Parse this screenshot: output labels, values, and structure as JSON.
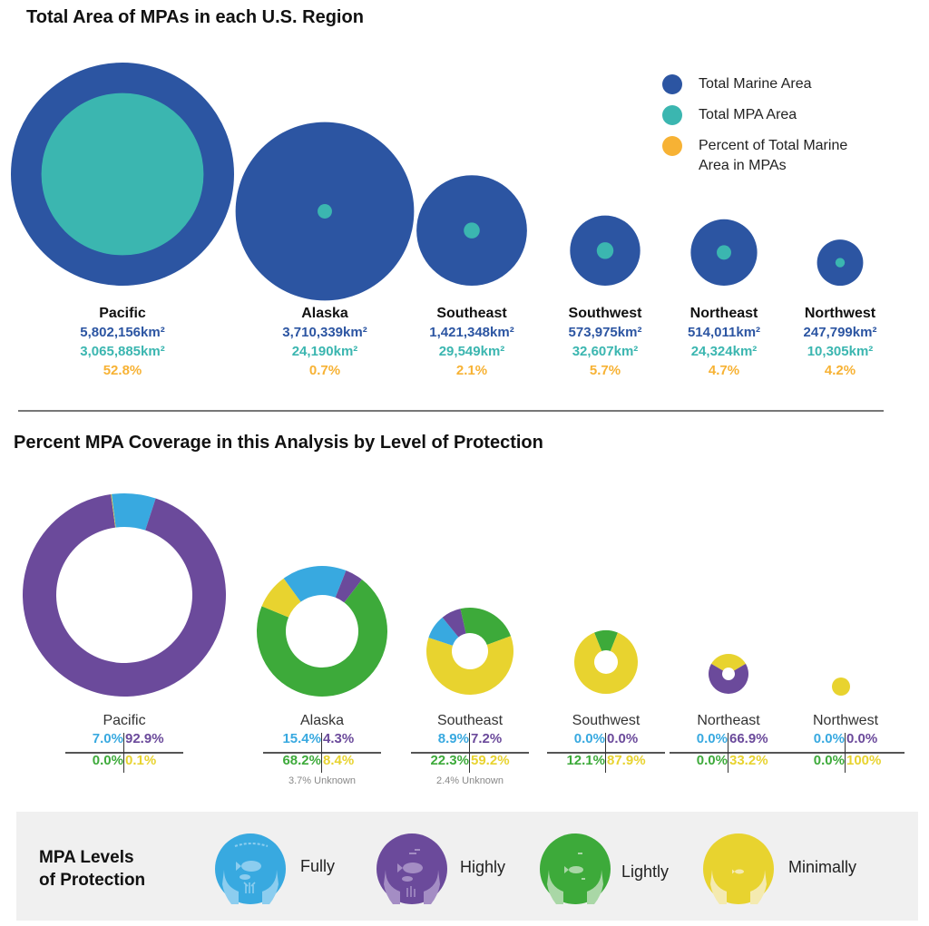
{
  "section1": {
    "title": "Total Area of MPAs in each U.S. Region",
    "legend": [
      {
        "label": "Total Marine Area",
        "color": "#2c55a2"
      },
      {
        "label": "Total MPA Area",
        "color": "#3bb6b0"
      },
      {
        "label": "Percent of Total Marine Area in MPAs",
        "line1": "Percent of Total Marine",
        "line2": "Area in MPAs",
        "color": "#f7b234"
      }
    ]
  },
  "section2": {
    "title": "Percent MPA Coverage in this Analysis by Level of Protection"
  },
  "colors": {
    "marine": "#2c55a2",
    "mpa": "#3bb6b0",
    "percent": "#f7b234",
    "fully": "#38a9e0",
    "highly": "#6b4a9b",
    "lightly": "#3daa3a",
    "minimally": "#e8d32f"
  },
  "chart_data": [
    {
      "type": "bubble",
      "title": "Total Area of MPAs in each U.S. Region",
      "unit": "km²",
      "categories": [
        "Pacific",
        "Alaska",
        "Southeast",
        "Southwest",
        "Northeast",
        "Northwest"
      ],
      "series": [
        {
          "name": "Total Marine Area",
          "values": [
            5802156,
            3710339,
            1421348,
            573975,
            514011,
            247799
          ],
          "labels": [
            "5,802,156km²",
            "3,710,339km²",
            "1,421,348km²",
            "573,975km²",
            "514,011km²",
            "247,799km²"
          ]
        },
        {
          "name": "Total MPA Area",
          "values": [
            3065885,
            24190,
            29549,
            32607,
            24324,
            10305
          ],
          "labels": [
            "3,065,885km²",
            "24,190km²",
            "29,549km²",
            "32,607km²",
            "24,324km²",
            "10,305km²"
          ]
        },
        {
          "name": "Percent of Total Marine Area in MPAs",
          "values": [
            52.8,
            0.7,
            2.1,
            5.7,
            4.7,
            4.2
          ],
          "labels": [
            "52.8%",
            "0.7%",
            "2.1%",
            "5.7%",
            "4.7%",
            "4.2%"
          ]
        }
      ],
      "legend_position": "top-right"
    },
    {
      "type": "pie",
      "subtype": "donut",
      "title": "Percent MPA Coverage in this Analysis by Level of Protection",
      "categories": [
        "Pacific",
        "Alaska",
        "Southeast",
        "Southwest",
        "Northeast",
        "Northwest"
      ],
      "levels": [
        "Fully",
        "Highly",
        "Lightly",
        "Minimally"
      ],
      "series": [
        {
          "name": "Fully",
          "values": [
            7.0,
            15.4,
            8.9,
            0.0,
            0.0,
            0.0
          ],
          "labels": [
            "7.0%",
            "15.4%",
            "8.9%",
            "0.0%",
            "0.0%",
            "0.0%"
          ]
        },
        {
          "name": "Highly",
          "values": [
            92.9,
            4.3,
            7.2,
            0.0,
            66.9,
            0.0
          ],
          "labels": [
            "92.9%",
            "4.3%",
            "7.2%",
            "0.0%",
            "66.9%",
            "0.0%"
          ]
        },
        {
          "name": "Lightly",
          "values": [
            0.0,
            68.2,
            22.3,
            12.1,
            0.0,
            0.0
          ],
          "labels": [
            "0.0%",
            "68.2%",
            "22.3%",
            "12.1%",
            "0.0%",
            "0.0%"
          ]
        },
        {
          "name": "Minimally",
          "values": [
            0.1,
            8.4,
            59.2,
            87.9,
            33.2,
            100
          ],
          "labels": [
            "0.1%",
            "8.4%",
            "59.2%",
            "87.9%",
            "33.2%",
            "100%"
          ]
        }
      ],
      "unknown": [
        "",
        "3.7% Unknown",
        "2.4% Unknown",
        "",
        "",
        ""
      ]
    }
  ],
  "legend_panel": {
    "title_line1": "MPA Levels",
    "title_line2": "of Protection",
    "levels": [
      {
        "label": "Fully",
        "icon": "fully-protected-icon"
      },
      {
        "label": "Highly",
        "icon": "highly-protected-icon"
      },
      {
        "label": "Lightly",
        "icon": "lightly-protected-icon"
      },
      {
        "label": "Minimally",
        "icon": "minimally-protected-icon"
      }
    ]
  }
}
